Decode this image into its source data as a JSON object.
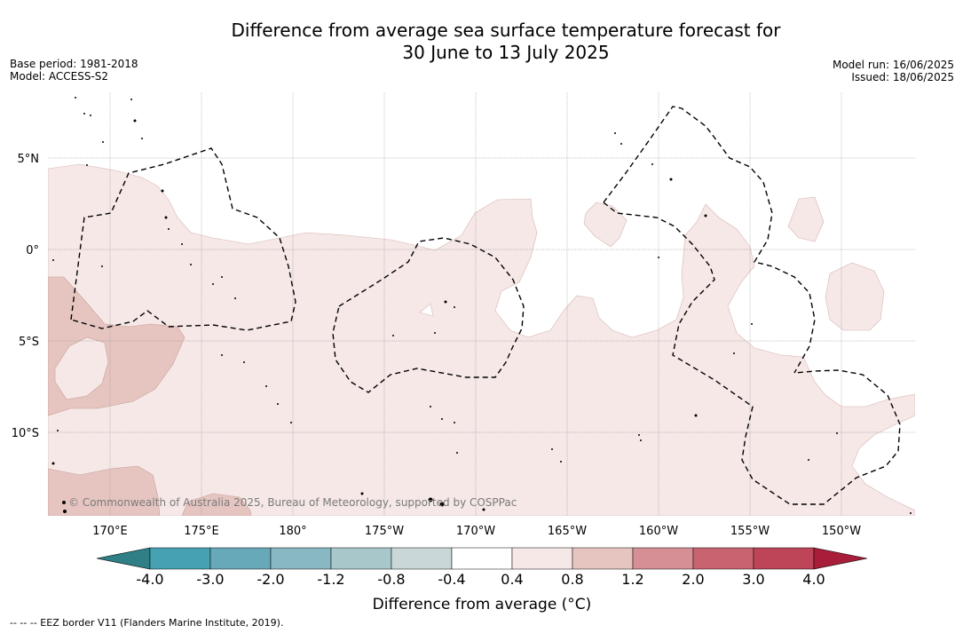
{
  "title": {
    "line1": "Difference from average sea surface temperature forecast for",
    "line2": "30 June to 13 July 2025"
  },
  "meta_left": {
    "base_period": "Base period: 1981-2018",
    "model": "Model: ACCESS-S2"
  },
  "meta_right": {
    "model_run": "Model run: 16/06/2025",
    "issued": "Issued: 18/06/2025"
  },
  "map": {
    "lat_labels": [
      "5°N",
      "0°",
      "5°S",
      "10°S"
    ],
    "lat_values": [
      5,
      0,
      -5,
      -10
    ],
    "lon_labels": [
      "170°E",
      "175°E",
      "180°",
      "175°W",
      "170°W",
      "165°W",
      "160°W",
      "155°W",
      "150°W"
    ],
    "lon_values": [
      170,
      175,
      180,
      185,
      190,
      195,
      200,
      205,
      210
    ],
    "copyright": "© Commonwealth of Australia 2025, Bureau of Meteorology, supported by COSPPac"
  },
  "colorbar": {
    "ticks": [
      "-4.0",
      "-3.0",
      "-2.0",
      "-1.2",
      "-0.8",
      "-0.4",
      "0.4",
      "0.8",
      "1.2",
      "2.0",
      "3.0",
      "4.0"
    ],
    "colors": [
      "#2e7f86",
      "#46a2b3",
      "#67a9b8",
      "#87b8c3",
      "#a8c7cb",
      "#cad7d8",
      "#ffffff",
      "#f5e8e7",
      "#e6c5c1",
      "#d68f95",
      "#c8646f",
      "#bd4557",
      "#a71d3a"
    ],
    "title": "Difference from average (°C)"
  },
  "footnote": "--  --  -- EEZ border V11 (Flanders Marine Institute, 2019)."
}
